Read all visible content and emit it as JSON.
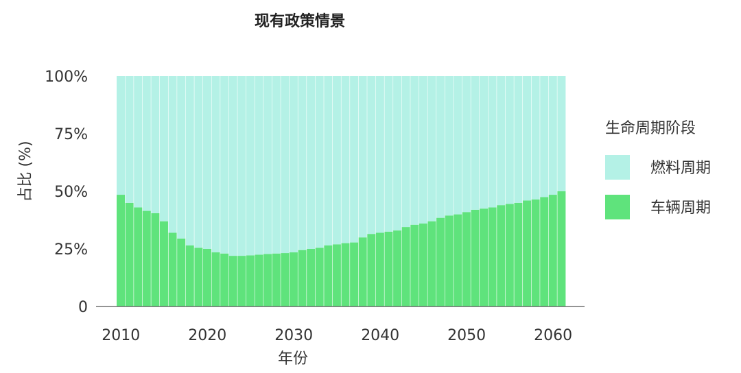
{
  "chart_data": {
    "type": "bar",
    "stacked": true,
    "normalized": true,
    "title": "现有政策情景",
    "xlabel": "年份",
    "ylabel": "占比 (%)",
    "ylim": [
      0,
      100
    ],
    "y_ticks": [
      0,
      25,
      50,
      75,
      100
    ],
    "y_tick_labels": [
      "0",
      "25%",
      "50%",
      "75%",
      "100%"
    ],
    "x_ticks": [
      2010,
      2020,
      2030,
      2040,
      2050,
      2060
    ],
    "x_tick_labels": [
      "2010",
      "2020",
      "2030",
      "2040",
      "2050",
      "2060"
    ],
    "grid": false,
    "legend": {
      "title": "生命周期阶段",
      "placement": "right"
    },
    "x": [
      2010,
      2011,
      2012,
      2013,
      2014,
      2015,
      2016,
      2017,
      2018,
      2019,
      2020,
      2021,
      2022,
      2023,
      2024,
      2025,
      2026,
      2027,
      2028,
      2029,
      2030,
      2031,
      2032,
      2033,
      2034,
      2035,
      2036,
      2037,
      2038,
      2039,
      2040,
      2041,
      2042,
      2043,
      2044,
      2045,
      2046,
      2047,
      2048,
      2049,
      2050,
      2051,
      2052,
      2053,
      2054,
      2055,
      2056,
      2057,
      2058,
      2059,
      2060,
      2061
    ],
    "series": [
      {
        "name": "车辆周期",
        "color": "#5fe37c",
        "values": [
          48.5,
          45,
          43,
          41.5,
          40.5,
          37,
          32,
          29.5,
          26.5,
          25.5,
          25,
          23.5,
          23,
          22,
          22,
          22.2,
          22.5,
          22.8,
          23,
          23.2,
          23.5,
          24.5,
          25,
          25.5,
          26.5,
          27,
          27.5,
          27.8,
          30,
          31.5,
          32,
          32.5,
          33,
          34.5,
          35.5,
          36,
          37,
          38.5,
          39.5,
          40,
          41,
          42,
          42.5,
          43,
          44,
          44.5,
          45,
          46,
          46.5,
          47.5,
          48.5,
          50
        ]
      },
      {
        "name": "燃料周期",
        "color": "#b4f1e6",
        "values": [
          51.5,
          55,
          57,
          58.5,
          59.5,
          63,
          68,
          70.5,
          73.5,
          74.5,
          75,
          76.5,
          77,
          78,
          78,
          77.8,
          77.5,
          77.2,
          77,
          76.8,
          76.5,
          75.5,
          75,
          74.5,
          73.5,
          73,
          72.5,
          72.2,
          70,
          68.5,
          68,
          67.5,
          67,
          65.5,
          64.5,
          64,
          63,
          61.5,
          60.5,
          60,
          59,
          58,
          57.5,
          57,
          56,
          55.5,
          55,
          54,
          53.5,
          52.5,
          51.5,
          50
        ]
      }
    ]
  }
}
